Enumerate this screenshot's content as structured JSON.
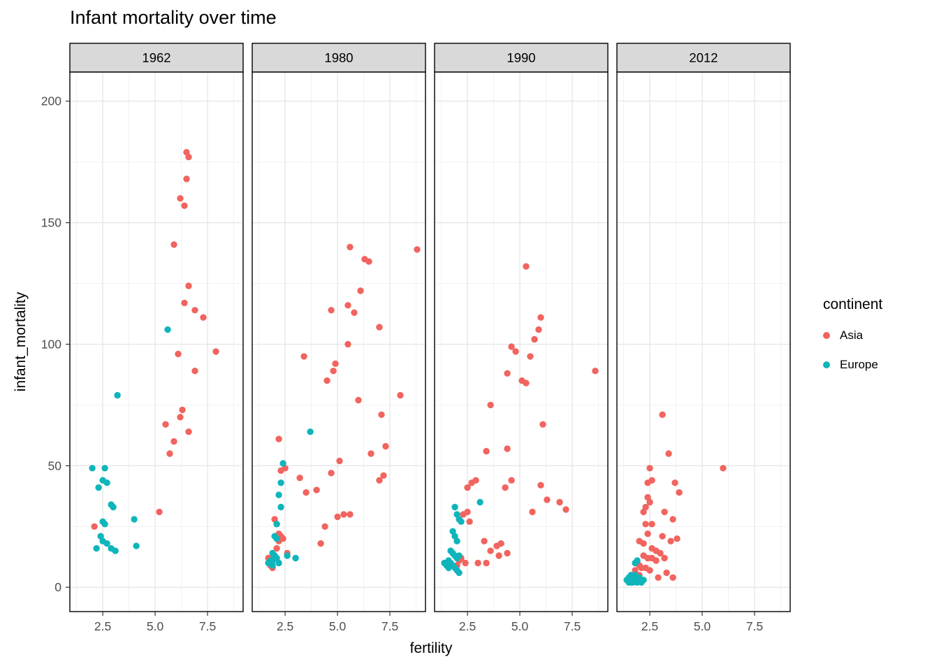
{
  "title": "Infant mortality over time",
  "axes": {
    "x": {
      "label": "fertility",
      "ticks": [
        2.5,
        5.0,
        7.5
      ],
      "tick_labels": [
        "2.5",
        "5.0",
        "7.5"
      ],
      "minor_ticks": [
        1.25,
        3.75,
        6.25,
        8.75
      ],
      "lim": [
        0.93,
        9.2
      ]
    },
    "y": {
      "label": "infant_mortality",
      "ticks": [
        0,
        50,
        100,
        150,
        200
      ],
      "tick_labels": [
        "0",
        "50",
        "100",
        "150",
        "200"
      ],
      "minor_ticks": [
        25,
        75,
        125,
        175
      ],
      "lim": [
        -10,
        212
      ]
    }
  },
  "legend": {
    "title": "continent",
    "items": [
      {
        "label": "Asia",
        "color": "#F1645F"
      },
      {
        "label": "Europe",
        "color": "#0FB5BA"
      }
    ]
  },
  "chart_data": {
    "type": "scatter",
    "title": "Infant mortality over time",
    "xlabel": "fertility",
    "ylabel": "infant_mortality",
    "facet_variable": "year",
    "legend_title": "continent",
    "legend_position": "right",
    "grid": true,
    "xlim": [
      0.93,
      9.2
    ],
    "ylim": [
      -10,
      212
    ],
    "facets": [
      {
        "label": "1962",
        "series": [
          {
            "name": "Asia",
            "points": [
              [
                2.1,
                25
              ],
              [
                5.2,
                31
              ],
              [
                5.9,
                141
              ],
              [
                6.5,
                179
              ],
              [
                6.6,
                177
              ],
              [
                6.5,
                168
              ],
              [
                6.2,
                160
              ],
              [
                6.4,
                157
              ],
              [
                6.6,
                124
              ],
              [
                6.4,
                117
              ],
              [
                6.9,
                114
              ],
              [
                7.3,
                111
              ],
              [
                6.9,
                89
              ],
              [
                7.9,
                97
              ],
              [
                6.1,
                96
              ],
              [
                6.3,
                73
              ],
              [
                5.5,
                67
              ],
              [
                6.2,
                70
              ],
              [
                6.6,
                64
              ],
              [
                5.9,
                60
              ],
              [
                5.7,
                55
              ]
            ]
          },
          {
            "name": "Europe",
            "points": [
              [
                2.0,
                49
              ],
              [
                2.6,
                49
              ],
              [
                2.5,
                44
              ],
              [
                2.7,
                43
              ],
              [
                2.3,
                41
              ],
              [
                2.9,
                34
              ],
              [
                3.0,
                33
              ],
              [
                2.5,
                27
              ],
              [
                2.6,
                26
              ],
              [
                2.4,
                21
              ],
              [
                2.5,
                19
              ],
              [
                2.7,
                18
              ],
              [
                2.2,
                16
              ],
              [
                2.9,
                16
              ],
              [
                3.1,
                15
              ],
              [
                4.0,
                28
              ],
              [
                4.1,
                17
              ],
              [
                3.2,
                79
              ],
              [
                5.6,
                106
              ]
            ]
          }
        ]
      },
      {
        "label": "1980",
        "series": [
          {
            "name": "Asia",
            "points": [
              [
                5.6,
                140
              ],
              [
                8.8,
                139
              ],
              [
                6.3,
                135
              ],
              [
                6.5,
                134
              ],
              [
                6.1,
                122
              ],
              [
                5.5,
                116
              ],
              [
                5.8,
                113
              ],
              [
                4.7,
                114
              ],
              [
                7.0,
                107
              ],
              [
                5.5,
                100
              ],
              [
                4.9,
                92
              ],
              [
                4.8,
                89
              ],
              [
                4.5,
                85
              ],
              [
                3.4,
                95
              ],
              [
                6.0,
                77
              ],
              [
                8.0,
                79
              ],
              [
                7.1,
                71
              ],
              [
                7.3,
                58
              ],
              [
                7.2,
                46
              ],
              [
                7.0,
                44
              ],
              [
                6.6,
                55
              ],
              [
                5.1,
                52
              ],
              [
                4.7,
                47
              ],
              [
                2.2,
                61
              ],
              [
                2.3,
                48
              ],
              [
                2.5,
                49
              ],
              [
                3.2,
                45
              ],
              [
                3.5,
                39
              ],
              [
                4.0,
                40
              ],
              [
                4.4,
                25
              ],
              [
                5.0,
                29
              ],
              [
                5.3,
                30
              ],
              [
                5.6,
                30
              ],
              [
                4.2,
                18
              ],
              [
                2.0,
                28
              ],
              [
                2.1,
                26
              ],
              [
                2.2,
                22
              ],
              [
                2.3,
                21
              ],
              [
                2.2,
                19
              ],
              [
                2.4,
                20
              ],
              [
                2.1,
                16
              ],
              [
                2.0,
                13
              ],
              [
                1.9,
                11
              ],
              [
                1.8,
                9
              ],
              [
                1.9,
                8
              ],
              [
                2.6,
                14
              ],
              [
                1.7,
                12
              ],
              [
                1.8,
                12
              ]
            ]
          },
          {
            "name": "Europe",
            "points": [
              [
                3.7,
                64
              ],
              [
                2.4,
                51
              ],
              [
                2.3,
                43
              ],
              [
                2.2,
                38
              ],
              [
                2.3,
                33
              ],
              [
                2.1,
                26
              ],
              [
                2.0,
                21
              ],
              [
                2.1,
                20
              ],
              [
                1.9,
                14
              ],
              [
                2.0,
                13
              ],
              [
                2.1,
                12
              ],
              [
                1.9,
                11
              ],
              [
                1.8,
                11
              ],
              [
                1.9,
                9
              ],
              [
                2.6,
                13
              ],
              [
                3.0,
                12
              ],
              [
                2.2,
                10
              ],
              [
                1.7,
                10
              ]
            ]
          }
        ]
      },
      {
        "label": "1990",
        "series": [
          {
            "name": "Asia",
            "points": [
              [
                5.3,
                132
              ],
              [
                6.0,
                111
              ],
              [
                5.9,
                106
              ],
              [
                5.7,
                102
              ],
              [
                5.5,
                95
              ],
              [
                4.6,
                99
              ],
              [
                4.8,
                97
              ],
              [
                4.4,
                88
              ],
              [
                5.1,
                85
              ],
              [
                5.3,
                84
              ],
              [
                6.1,
                67
              ],
              [
                3.6,
                75
              ],
              [
                3.4,
                56
              ],
              [
                4.4,
                57
              ],
              [
                4.3,
                41
              ],
              [
                4.6,
                44
              ],
              [
                8.6,
                89
              ],
              [
                6.0,
                42
              ],
              [
                6.3,
                36
              ],
              [
                5.6,
                31
              ],
              [
                6.9,
                35
              ],
              [
                7.2,
                32
              ],
              [
                2.7,
                43
              ],
              [
                2.9,
                44
              ],
              [
                2.5,
                41
              ],
              [
                2.3,
                30
              ],
              [
                2.5,
                31
              ],
              [
                2.6,
                27
              ],
              [
                3.3,
                19
              ],
              [
                3.6,
                15
              ],
              [
                3.9,
                17
              ],
              [
                4.1,
                18
              ],
              [
                3.0,
                10
              ],
              [
                3.4,
                10
              ],
              [
                4.0,
                13
              ],
              [
                4.4,
                14
              ],
              [
                2.2,
                12
              ],
              [
                2.4,
                10
              ],
              [
                2.0,
                9
              ],
              [
                2.1,
                11
              ]
            ]
          },
          {
            "name": "Europe",
            "points": [
              [
                1.9,
                33
              ],
              [
                2.0,
                30
              ],
              [
                2.1,
                28
              ],
              [
                3.1,
                35
              ],
              [
                2.2,
                27
              ],
              [
                1.8,
                23
              ],
              [
                1.9,
                21
              ],
              [
                2.0,
                19
              ],
              [
                1.7,
                15
              ],
              [
                1.8,
                14
              ],
              [
                1.9,
                13
              ],
              [
                2.0,
                12
              ],
              [
                2.1,
                13
              ],
              [
                1.6,
                11
              ],
              [
                1.7,
                10
              ],
              [
                1.8,
                9
              ],
              [
                1.9,
                8
              ],
              [
                2.0,
                7
              ],
              [
                2.1,
                6
              ],
              [
                1.5,
                9
              ],
              [
                1.6,
                8
              ],
              [
                1.4,
                10
              ]
            ]
          }
        ]
      },
      {
        "label": "2012",
        "series": [
          {
            "name": "Asia",
            "points": [
              [
                3.1,
                71
              ],
              [
                3.4,
                55
              ],
              [
                6.0,
                49
              ],
              [
                2.5,
                49
              ],
              [
                2.6,
                44
              ],
              [
                2.4,
                43
              ],
              [
                3.7,
                43
              ],
              [
                3.9,
                39
              ],
              [
                2.4,
                37
              ],
              [
                2.5,
                35
              ],
              [
                2.3,
                33
              ],
              [
                2.2,
                31
              ],
              [
                3.2,
                31
              ],
              [
                3.6,
                28
              ],
              [
                2.3,
                26
              ],
              [
                2.6,
                26
              ],
              [
                2.4,
                22
              ],
              [
                3.1,
                21
              ],
              [
                2.0,
                19
              ],
              [
                2.2,
                18
              ],
              [
                3.5,
                19
              ],
              [
                3.8,
                20
              ],
              [
                2.6,
                16
              ],
              [
                2.8,
                15
              ],
              [
                3.0,
                14
              ],
              [
                2.2,
                13
              ],
              [
                2.4,
                12
              ],
              [
                2.6,
                12
              ],
              [
                2.8,
                11
              ],
              [
                3.2,
                12
              ],
              [
                1.9,
                10
              ],
              [
                2.0,
                9
              ],
              [
                2.1,
                8
              ],
              [
                2.3,
                8
              ],
              [
                2.5,
                7
              ],
              [
                3.3,
                6
              ],
              [
                3.6,
                4
              ],
              [
                2.9,
                4
              ],
              [
                1.8,
                7
              ],
              [
                2.0,
                5
              ]
            ]
          },
          {
            "name": "Europe",
            "points": [
              [
                1.9,
                11
              ],
              [
                1.8,
                10
              ],
              [
                1.5,
                4
              ],
              [
                1.6,
                3
              ],
              [
                1.7,
                4
              ],
              [
                1.8,
                3
              ],
              [
                1.9,
                2
              ],
              [
                2.0,
                3
              ],
              [
                2.1,
                2
              ],
              [
                1.4,
                3
              ],
              [
                1.6,
                5
              ],
              [
                1.8,
                5
              ],
              [
                2.0,
                4
              ],
              [
                2.2,
                3
              ],
              [
                1.5,
                2
              ],
              [
                1.7,
                2
              ],
              [
                1.9,
                4
              ],
              [
                1.6,
                2
              ]
            ]
          }
        ]
      }
    ]
  }
}
